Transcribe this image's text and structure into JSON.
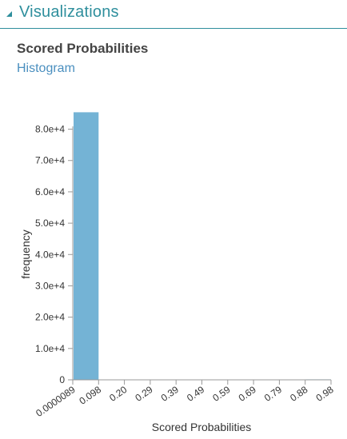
{
  "panel": {
    "title": "Visualizations"
  },
  "section": {
    "title": "Scored Probabilities",
    "subtitle": "Histogram"
  },
  "colors": {
    "accent": "#2f8f9d",
    "bar": "#74b3d5",
    "link": "#4a8fbf",
    "axis": "#999999"
  },
  "icons": {
    "collapse": "triangle-down-icon"
  },
  "chart_data": {
    "type": "bar",
    "title": "",
    "xlabel": "Scored Probabilities",
    "ylabel": "frequency",
    "x_tick_labels": [
      "0.0000089",
      "0.098",
      "0.20",
      "0.29",
      "0.39",
      "0.49",
      "0.59",
      "0.69",
      "0.79",
      "0.88",
      "0.98"
    ],
    "y_tick_labels": [
      "0",
      "1.0e+4",
      "2.0e+4",
      "3.0e+4",
      "4.0e+4",
      "5.0e+4",
      "6.0e+4",
      "7.0e+4",
      "8.0e+4"
    ],
    "y_ticks": [
      0,
      10000,
      20000,
      30000,
      40000,
      50000,
      60000,
      70000,
      80000
    ],
    "ylim": [
      0,
      85500
    ],
    "bins": [
      {
        "from": "0.0000089",
        "to": "0.098",
        "value": 85400
      },
      {
        "from": "0.098",
        "to": "0.20",
        "value": 0
      },
      {
        "from": "0.20",
        "to": "0.29",
        "value": 0
      },
      {
        "from": "0.29",
        "to": "0.39",
        "value": 0
      },
      {
        "from": "0.39",
        "to": "0.49",
        "value": 0
      },
      {
        "from": "0.49",
        "to": "0.59",
        "value": 0
      },
      {
        "from": "0.59",
        "to": "0.69",
        "value": 0
      },
      {
        "from": "0.69",
        "to": "0.79",
        "value": 0
      },
      {
        "from": "0.79",
        "to": "0.88",
        "value": 0
      },
      {
        "from": "0.88",
        "to": "0.98",
        "value": 150
      }
    ],
    "grid": false,
    "legend": "none"
  }
}
